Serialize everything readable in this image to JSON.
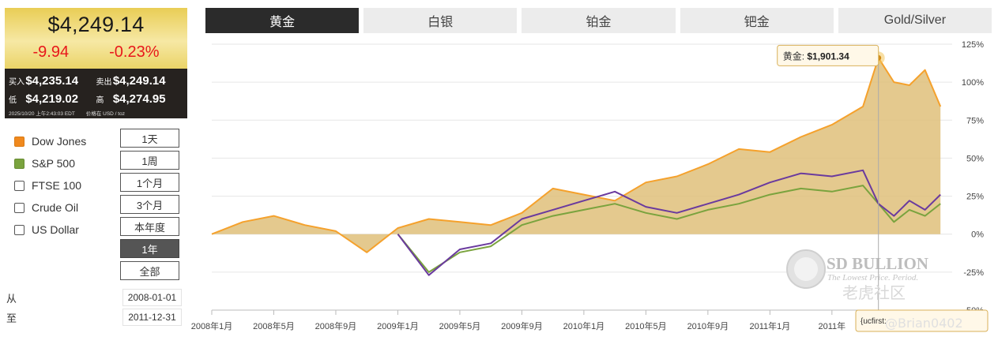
{
  "price": {
    "current": "$4,249.14",
    "change": "-9.94",
    "change_pct": "-0.23%",
    "buy_label": "买入",
    "buy_value": "$4,235.14",
    "sell_label": "卖出",
    "sell_value": "$4,249.14",
    "low_label": "低",
    "low_value": "$4,219.02",
    "high_label": "高",
    "high_value": "$4,274.95",
    "timestamp": "2025/10/20 上午2:43:03 EDT",
    "unit_note": "价格在 USD / toz"
  },
  "indices": [
    {
      "label": "Dow Jones",
      "checked": true,
      "color": "#f0891e"
    },
    {
      "label": "S&P 500",
      "checked": true,
      "color": "#7aa33e"
    },
    {
      "label": "FTSE 100",
      "checked": false
    },
    {
      "label": "Crude Oil",
      "checked": false
    },
    {
      "label": "US Dollar",
      "checked": false
    }
  ],
  "periods": [
    {
      "label": "1天",
      "active": false
    },
    {
      "label": "1周",
      "active": false
    },
    {
      "label": "1个月",
      "active": false
    },
    {
      "label": "3个月",
      "active": false
    },
    {
      "label": "本年度",
      "active": false
    },
    {
      "label": "1年",
      "active": true
    },
    {
      "label": "全部",
      "active": false
    }
  ],
  "range": {
    "from_label": "从",
    "from_value": "2008-01-01",
    "to_label": "至",
    "to_value": "2011-12-31"
  },
  "tabs": [
    {
      "label": "黄金",
      "active": true
    },
    {
      "label": "白银",
      "active": false
    },
    {
      "label": "铂金",
      "active": false
    },
    {
      "label": "钯金",
      "active": false
    },
    {
      "label": "Gold/Silver",
      "active": false
    }
  ],
  "chart_data": {
    "type": "area",
    "x_ticks": [
      "2008年1月",
      "2008年5月",
      "2008年9月",
      "2009年1月",
      "2009年5月",
      "2009年9月",
      "2010年1月",
      "2010年5月",
      "2010年9月",
      "2011年1月",
      "2011年"
    ],
    "y_ticks": [
      "125%",
      "100%",
      "75%",
      "50%",
      "25%",
      "0%",
      "-25%",
      "-50%"
    ],
    "ylim": [
      -50,
      125
    ],
    "grid": true,
    "series": [
      {
        "color": "#f5a12c",
        "fill": "#dfc07a",
        "x": [
          "2008-01",
          "2008-03",
          "2008-05",
          "2008-07",
          "2008-09",
          "2008-11",
          "2009-01",
          "2009-03",
          "2009-05",
          "2009-07",
          "2009-09",
          "2009-11",
          "2010-01",
          "2010-03",
          "2010-05",
          "2010-07",
          "2010-09",
          "2010-11",
          "2011-01",
          "2011-03",
          "2011-05",
          "2011-07",
          "2011-08",
          "2011-09",
          "2011-10",
          "2011-11",
          "2011-12"
        ],
        "values": [
          0,
          8,
          12,
          6,
          2,
          -12,
          4,
          10,
          8,
          6,
          14,
          30,
          26,
          22,
          34,
          38,
          46,
          56,
          54,
          64,
          72,
          84,
          116,
          100,
          98,
          108,
          84
        ]
      },
      {
        "color": "#7aa33e",
        "x": [
          "2009-01",
          "2009-03",
          "2009-05",
          "2009-07",
          "2009-09",
          "2009-11",
          "2010-01",
          "2010-03",
          "2010-05",
          "2010-07",
          "2010-09",
          "2010-11",
          "2011-01",
          "2011-03",
          "2011-05",
          "2011-07",
          "2011-08",
          "2011-09",
          "2011-10",
          "2011-11",
          "2011-12"
        ],
        "values": [
          0,
          -25,
          -12,
          -8,
          6,
          12,
          16,
          20,
          14,
          10,
          16,
          20,
          26,
          30,
          28,
          32,
          20,
          8,
          16,
          12,
          20
        ]
      },
      {
        "color": "#6a3a9e",
        "x": [
          "2009-01",
          "2009-03",
          "2009-05",
          "2009-07",
          "2009-09",
          "2009-11",
          "2010-01",
          "2010-03",
          "2010-05",
          "2010-07",
          "2010-09",
          "2010-11",
          "2011-01",
          "2011-03",
          "2011-05",
          "2011-07",
          "2011-08",
          "2011-09",
          "2011-10",
          "2011-11",
          "2011-12"
        ],
        "values": [
          0,
          -27,
          -10,
          -6,
          10,
          16,
          22,
          28,
          18,
          14,
          20,
          26,
          34,
          40,
          38,
          42,
          20,
          12,
          22,
          16,
          26
        ]
      }
    ],
    "tooltip": {
      "label": "黄金: ",
      "value": "$1,901.34",
      "x": "2011-08",
      "y": 116
    },
    "tooltip_bottom": "{ucfirst:"
  },
  "watermark": {
    "brand": "SD BULLION",
    "tagline": "The Lowest Price. Period.",
    "forum": "老虎社区",
    "user": "@Brian0402"
  }
}
